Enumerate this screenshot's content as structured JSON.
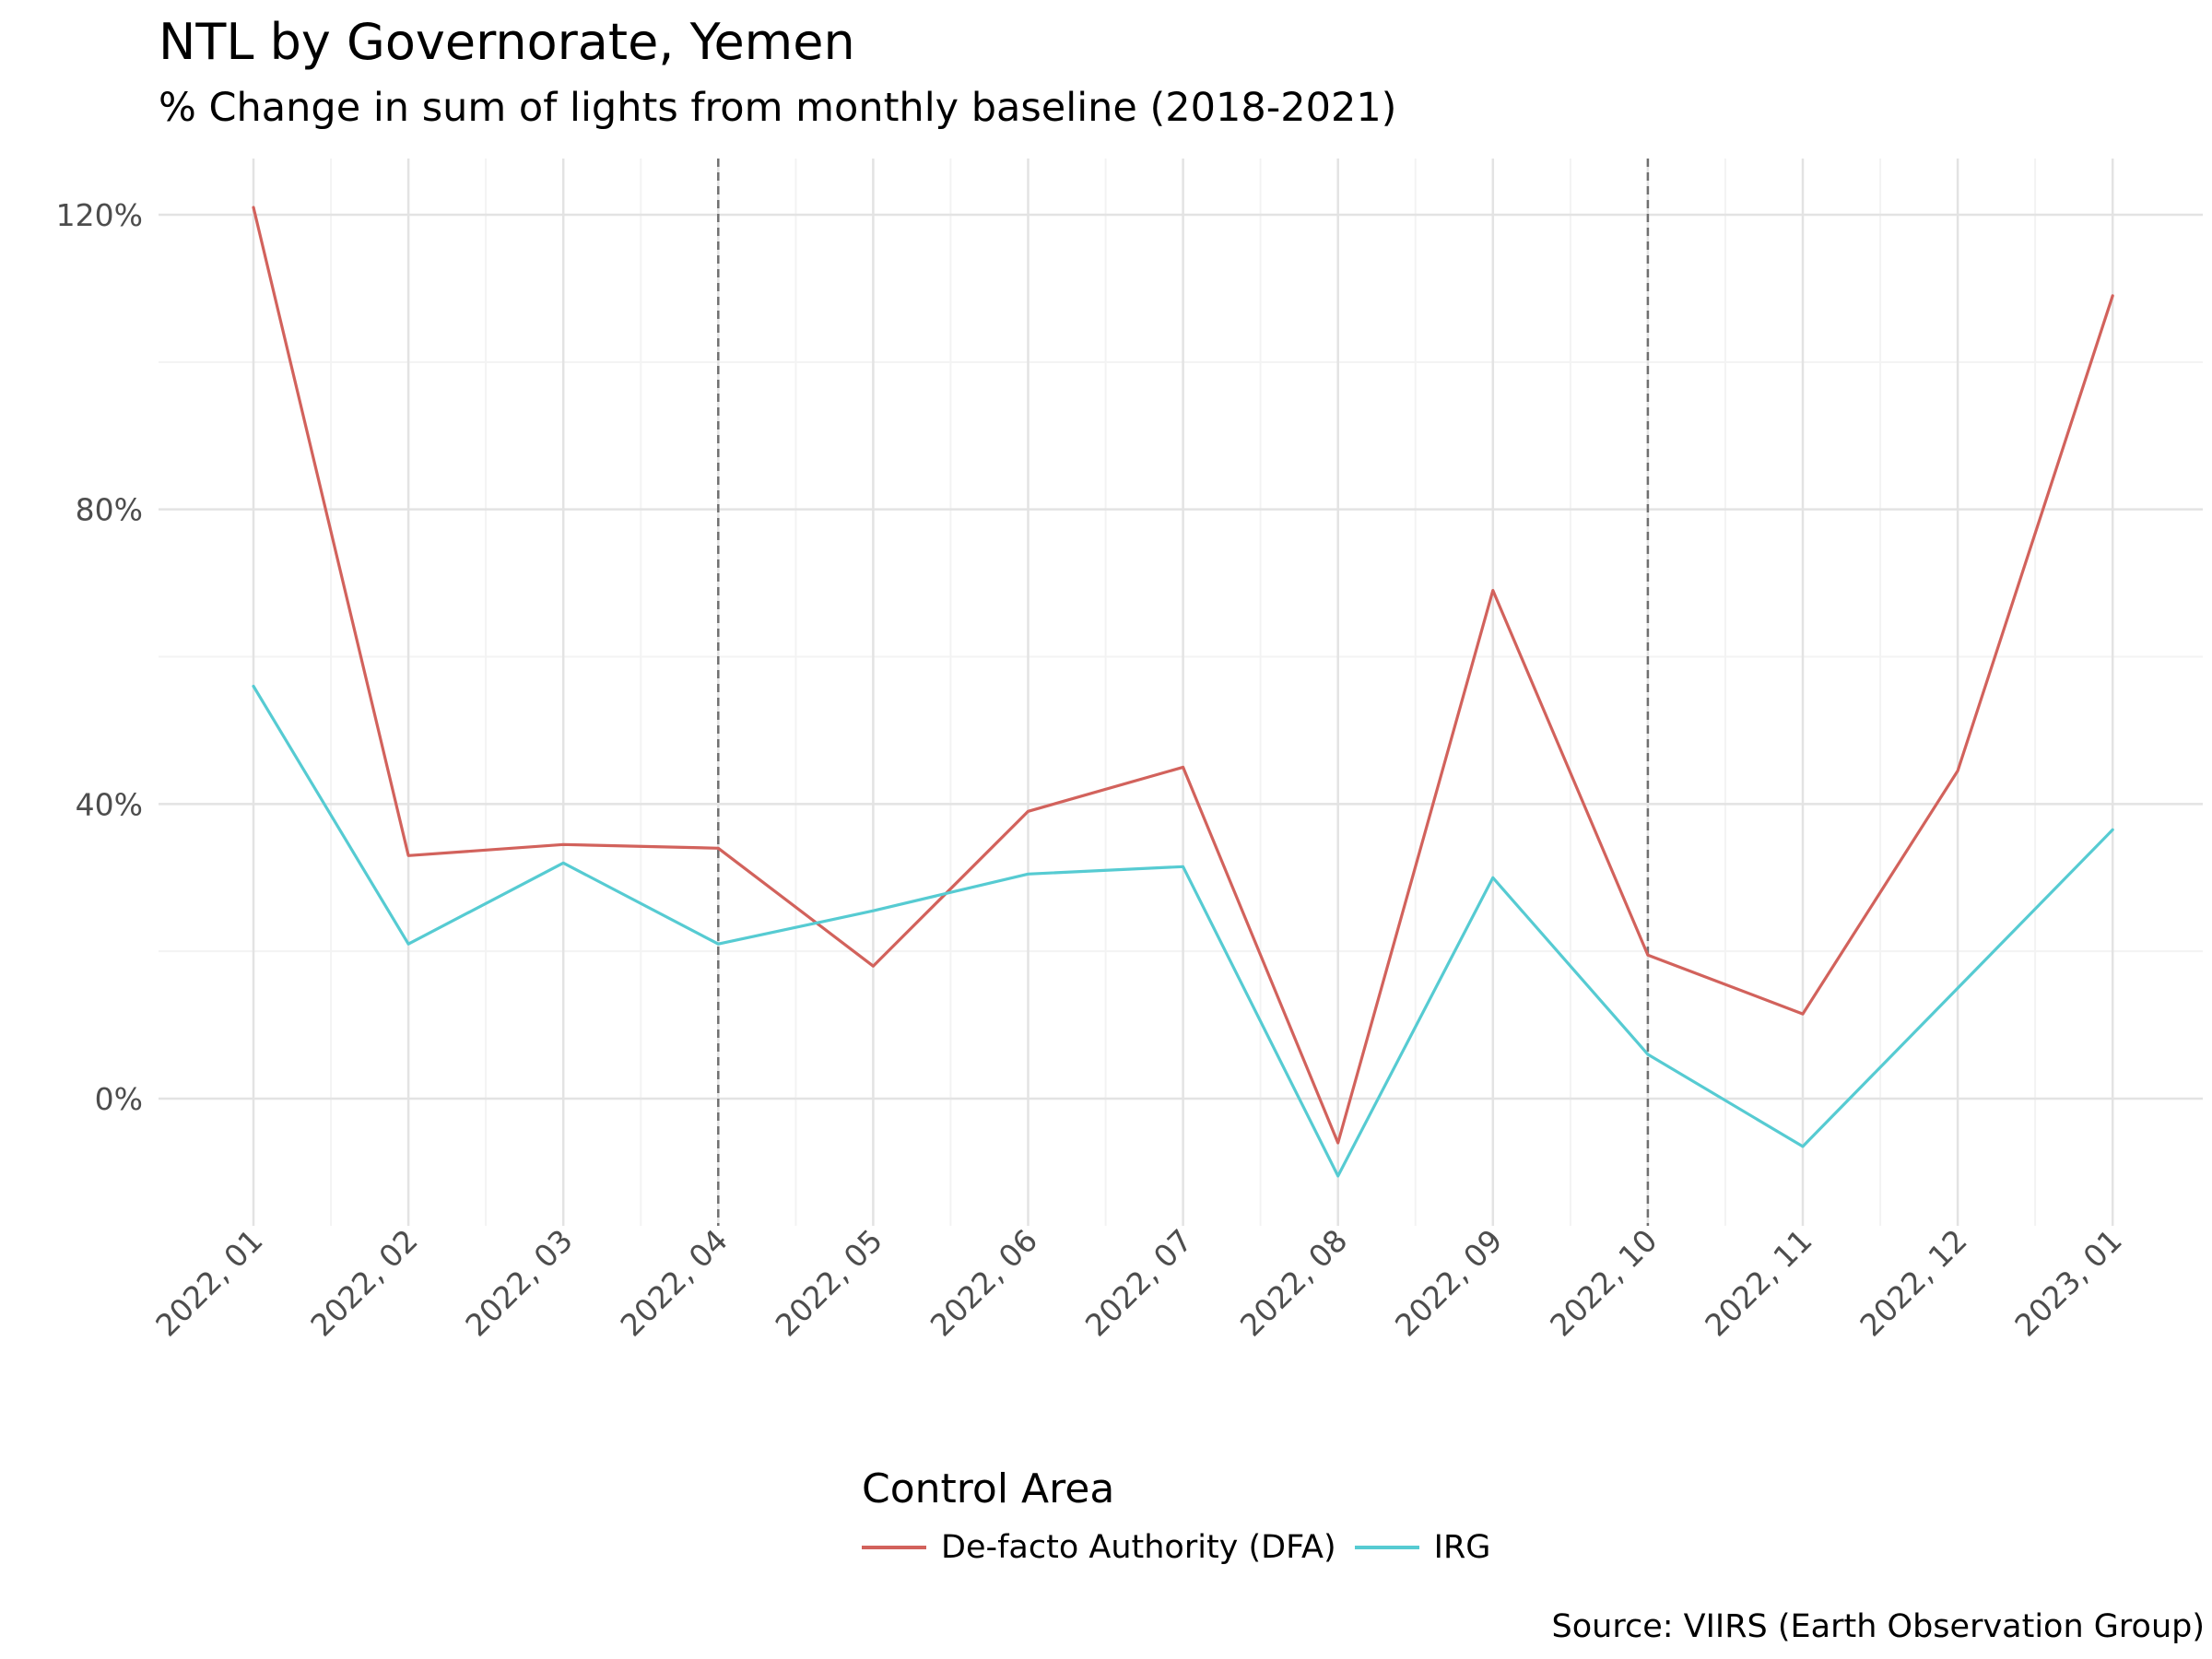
{
  "chart_data": {
    "type": "line",
    "title": "NTL by Governorate, Yemen",
    "subtitle": "% Change in sum of lights from monthly baseline (2018-2021)",
    "caption": "Source: VIIRS (Earth Observation Group)",
    "xlabel": "",
    "ylabel": "",
    "categories": [
      "2022, 01",
      "2022, 02",
      "2022, 03",
      "2022, 04",
      "2022, 05",
      "2022, 06",
      "2022, 07",
      "2022, 08",
      "2022, 09",
      "2022, 10",
      "2022, 11",
      "2022, 12",
      "2023, 01"
    ],
    "x_dates": [
      "2022-01",
      "2022-02",
      "2022-03",
      "2022-04",
      "2022-05",
      "2022-06",
      "2022-07",
      "2022-08",
      "2022-09",
      "2022-10",
      "2022-11",
      "2022-12",
      "2023-01"
    ],
    "y_ticks": [
      0,
      40,
      80,
      120
    ],
    "y_tick_labels": [
      "0%",
      "40%",
      "80%",
      "120%"
    ],
    "ylim": [
      -17,
      127
    ],
    "vlines": [
      "2022-04",
      "2022-10"
    ],
    "legend_title": "Control Area",
    "legend_position": "bottom",
    "grid": true,
    "series": [
      {
        "name": "De-facto Authority (DFA)",
        "color": "#D2625C",
        "values": [
          121,
          33,
          34.5,
          34,
          18,
          39,
          45,
          -6,
          69,
          19.5,
          11.5,
          44.5,
          109
        ]
      },
      {
        "name": "IRG",
        "color": "#56CBD2",
        "values": [
          56,
          21,
          32,
          21,
          25.5,
          30.5,
          31.5,
          -10.5,
          30,
          6,
          -6.5,
          15,
          36.5
        ]
      }
    ]
  }
}
